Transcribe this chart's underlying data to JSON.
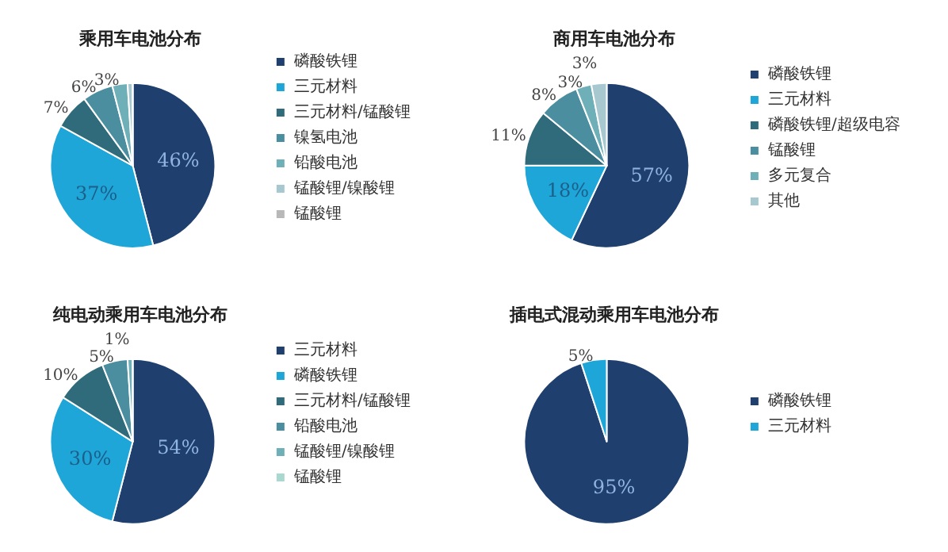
{
  "chart_data": [
    {
      "type": "pie",
      "title": "乘用车电池分布",
      "categories": [
        "磷酸铁锂",
        "三元材料",
        "三元材料/锰酸锂",
        "镍氢电池",
        "铅酸电池",
        "锰酸锂/镍酸锂",
        "锰酸锂"
      ],
      "values": [
        46,
        37,
        7,
        6,
        3,
        1,
        0
      ],
      "value_labels": [
        "46%",
        "37%",
        "7%",
        "6%",
        "3%",
        null,
        null
      ],
      "colors": [
        "#1f3f6e",
        "#1fa6d9",
        "#2f6b7a",
        "#4a8ea0",
        "#6fb0b8",
        "#a8c8d0",
        "#b8b8b8"
      ],
      "legend": "right"
    },
    {
      "type": "pie",
      "title": "商用车电池分布",
      "categories": [
        "磷酸铁锂",
        "三元材料",
        "磷酸铁锂/超级电容",
        "锰酸锂",
        "多元复合",
        "其他"
      ],
      "values": [
        57,
        18,
        11,
        8,
        3,
        3
      ],
      "value_labels": [
        "57%",
        "18%",
        "11%",
        "8%",
        "3%",
        "3%"
      ],
      "colors": [
        "#1f3f6e",
        "#1fa6d9",
        "#2f6b7a",
        "#4a8ea0",
        "#6fb0b8",
        "#a8c8d0"
      ],
      "legend": "right"
    },
    {
      "type": "pie",
      "title": "纯电动乘用车电池分布",
      "categories": [
        "三元材料",
        "磷酸铁锂",
        "三元材料/锰酸锂",
        "铅酸电池",
        "锰酸锂/镍酸锂",
        "锰酸锂"
      ],
      "values": [
        54,
        30,
        10,
        5,
        1,
        0
      ],
      "value_labels": [
        "54%",
        "30%",
        "10%",
        "5%",
        "1%",
        null
      ],
      "colors": [
        "#1f3f6e",
        "#1fa6d9",
        "#2f6b7a",
        "#4a8ea0",
        "#6fb0b8",
        "#a8d8d0"
      ],
      "legend": "right"
    },
    {
      "type": "pie",
      "title": "插电式混动乘用车电池分布",
      "categories": [
        "磷酸铁锂",
        "三元材料"
      ],
      "values": [
        95,
        5
      ],
      "value_labels": [
        "95%",
        "5%"
      ],
      "colors": [
        "#1f3f6e",
        "#1fa6d9"
      ],
      "legend": "right"
    }
  ]
}
